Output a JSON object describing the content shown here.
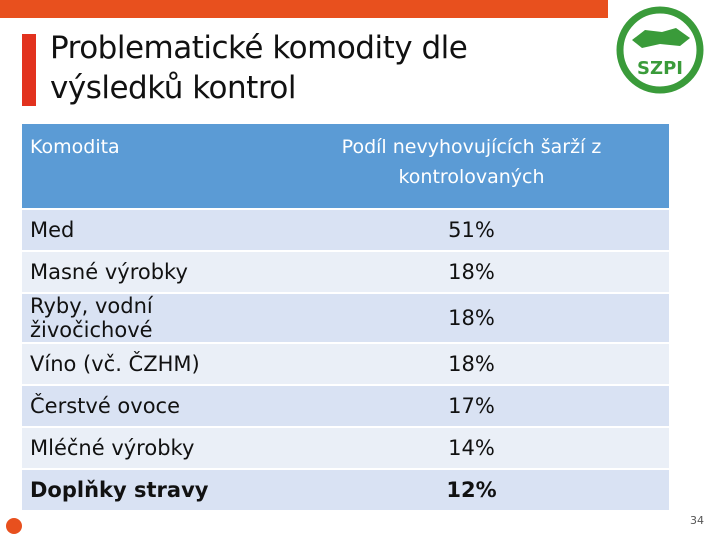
{
  "header": {
    "title": "Problematické komodity dle výsledků kontrol",
    "logo": "SZPI"
  },
  "table": {
    "columns": [
      "Komodita",
      "Podíl nevyhovujících šarží z kontrolovaných"
    ],
    "rows": [
      [
        "Med",
        "51%"
      ],
      [
        "Masné výrobky",
        "18%"
      ],
      [
        "Ryby, vodní živočichové",
        "18%"
      ],
      [
        "Víno (vč. ČZHM)",
        "18%"
      ],
      [
        "Čerstvé ovoce",
        "17%"
      ],
      [
        "Mléčné výrobky",
        "14%"
      ],
      [
        "Doplňky stravy",
        "12%"
      ]
    ]
  },
  "footer": {
    "page": "34"
  }
}
